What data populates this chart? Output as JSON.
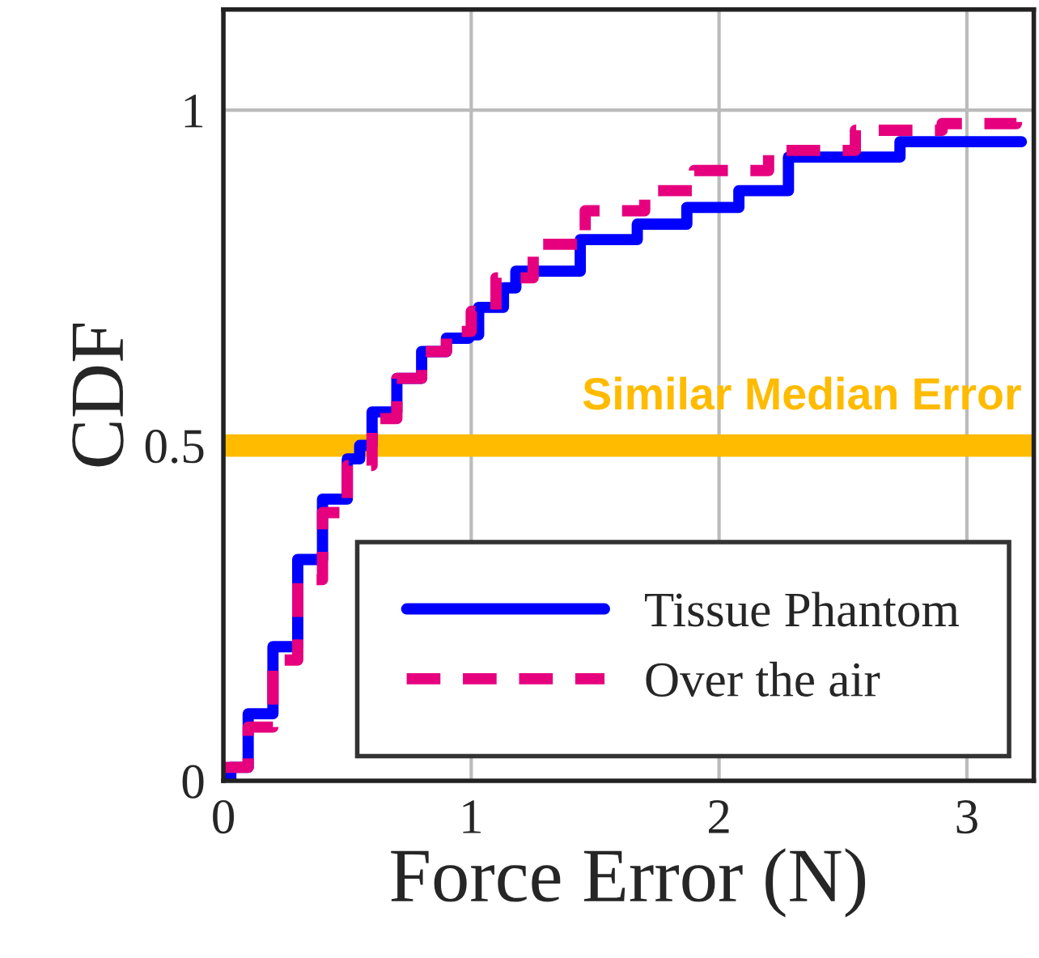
{
  "chart_data": {
    "type": "step",
    "xlabel": "Force Error (N)",
    "ylabel": "CDF",
    "xlim": [
      0,
      3.27
    ],
    "ylim": [
      0,
      1.15
    ],
    "xticks": [
      0,
      1,
      2,
      3
    ],
    "yticks": [
      0,
      0.5,
      1
    ],
    "grid": true,
    "legend": "bottom right",
    "series": [
      {
        "name": "Tissue Phantom",
        "color": "#0000ff",
        "line_style": "solid",
        "x": [
          0,
          0.03,
          0.1,
          0.2,
          0.3,
          0.4,
          0.5,
          0.55,
          0.6,
          0.7,
          0.8,
          0.9,
          0.99,
          1.03,
          1.13,
          1.18,
          1.44,
          1.67,
          1.87,
          2.08,
          2.28,
          2.73,
          3.22
        ],
        "values": [
          0,
          0.02,
          0.1,
          0.2,
          0.33,
          0.42,
          0.48,
          0.5,
          0.55,
          0.6,
          0.64,
          0.66,
          0.665,
          0.706,
          0.735,
          0.76,
          0.807,
          0.83,
          0.855,
          0.88,
          0.93,
          0.953,
          0.953
        ]
      },
      {
        "name": "Over the air",
        "color": "#e6007e",
        "line_style": "dashed",
        "x": [
          0,
          0.1,
          0.2,
          0.3,
          0.4,
          0.5,
          0.6,
          0.7,
          0.8,
          0.9,
          1.0,
          1.1,
          1.25,
          1.46,
          1.7,
          1.9,
          2.2,
          2.55,
          2.9,
          3.2
        ],
        "values": [
          0.02,
          0.08,
          0.18,
          0.3,
          0.4,
          0.47,
          0.54,
          0.6,
          0.64,
          0.67,
          0.7,
          0.75,
          0.8,
          0.85,
          0.88,
          0.91,
          0.94,
          0.97,
          0.98,
          0.99
        ]
      }
    ],
    "ref_lines": [
      {
        "axis": "y",
        "value": 0.5,
        "label": "Similar Median Error",
        "color": "#ffbb00"
      }
    ]
  }
}
